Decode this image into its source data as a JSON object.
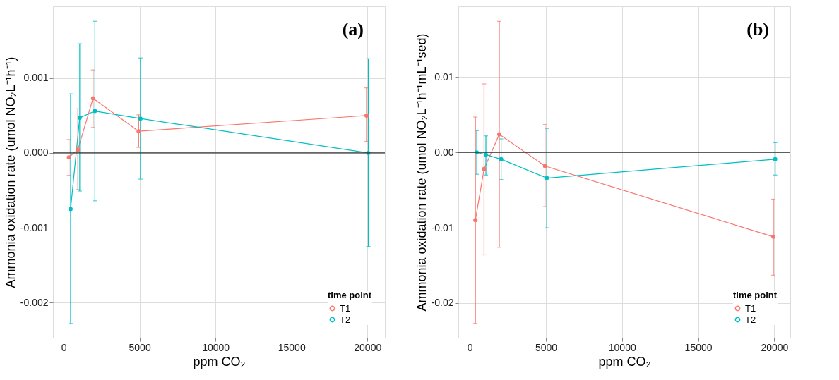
{
  "chart_data": [
    {
      "type": "line",
      "title": null,
      "annotations": [
        "(a)"
      ],
      "xlabel": "ppm CO₂",
      "ylabel": "Ammonia oxidation rate (umol NO₂L⁻¹h⁻¹)",
      "legend_title": "time point",
      "legend": "bottom right",
      "grid": true,
      "marker": "circle",
      "line_style": "solid",
      "xlim": [
        -700,
        21150
      ],
      "xticks": [
        0,
        5000,
        10000,
        15000,
        20000
      ],
      "ylim": [
        -0.00247,
        0.00196
      ],
      "yticks": [
        {
          "value": -0.002,
          "label": "-0.002"
        },
        {
          "value": -0.001,
          "label": "-0.001"
        },
        {
          "value": 0,
          "label": "0.000"
        },
        {
          "value": 0.001,
          "label": "0.001"
        }
      ],
      "ref_lines": [
        {
          "axis": "y",
          "value": 0,
          "label": null,
          "color": "#333333"
        }
      ],
      "series": [
        {
          "name": "T1",
          "color": "#f8766d",
          "x": [
            350,
            940,
            1940,
            4940,
            19940
          ],
          "values": [
            -6e-05,
            4.5e-05,
            0.00073,
            0.00029,
            0.0005
          ],
          "errors": [
            [
              -0.0003,
              0.00018
            ],
            [
              -0.00049,
              0.00059
            ],
            [
              0.00034,
              0.00111
            ],
            [
              7.4e-05,
              0.00051
            ],
            [
              0.000155,
              0.00087
            ]
          ]
        },
        {
          "name": "T2",
          "color": "#00bfc4",
          "x": [
            460,
            1060,
            2060,
            5060,
            20060
          ],
          "values": [
            -0.00075,
            0.00047,
            0.00056,
            0.00046,
            0.0
          ],
          "errors": [
            [
              -0.00228,
              0.00079
            ],
            [
              -0.00051,
              0.00146
            ],
            [
              -0.00064,
              0.00176
            ],
            [
              -0.00035,
              0.00127
            ],
            [
              -0.00125,
              0.00126
            ]
          ]
        }
      ]
    },
    {
      "type": "line",
      "title": null,
      "annotations": [
        "(b)"
      ],
      "xlabel": "ppm CO₂",
      "ylabel": "Ammonia oxidation rate (umol NO₂L⁻¹h⁻¹mL⁻¹sed)",
      "legend_title": "time point",
      "legend": "bottom right",
      "grid": true,
      "marker": "circle",
      "line_style": "solid",
      "xlim": [
        -750,
        21050
      ],
      "xticks": [
        0,
        5000,
        10000,
        15000,
        20000
      ],
      "ylim": [
        -0.0246,
        0.0194
      ],
      "yticks": [
        {
          "value": -0.02,
          "label": "-0.02"
        },
        {
          "value": -0.01,
          "label": "-0.01"
        },
        {
          "value": 0,
          "label": "0.00"
        },
        {
          "value": 0.01,
          "label": "0.01"
        }
      ],
      "ref_lines": [
        {
          "axis": "y",
          "value": 0,
          "label": null,
          "color": "#333333"
        }
      ],
      "series": [
        {
          "name": "T1",
          "color": "#f8766d",
          "x": [
            370,
            940,
            1940,
            4940,
            19940
          ],
          "values": [
            -0.009,
            -0.0022,
            0.0024,
            -0.0018,
            -0.0112
          ],
          "errors": [
            [
              -0.0227,
              0.0047
            ],
            [
              -0.0136,
              0.0091
            ],
            [
              -0.0126,
              0.0174
            ],
            [
              -0.0072,
              0.0037
            ],
            [
              -0.0163,
              -0.0062
            ]
          ]
        },
        {
          "name": "T2",
          "color": "#00bfc4",
          "x": [
            460,
            1060,
            2060,
            5060,
            20060
          ],
          "values": [
            0.0,
            -0.0003,
            -0.0009,
            -0.0034,
            -0.0009
          ],
          "errors": [
            [
              -0.0029,
              0.0029
            ],
            [
              -0.003,
              0.0022
            ],
            [
              -0.0036,
              0.0018
            ],
            [
              -0.01,
              0.0032
            ],
            [
              -0.003,
              0.0013
            ]
          ]
        }
      ]
    }
  ]
}
